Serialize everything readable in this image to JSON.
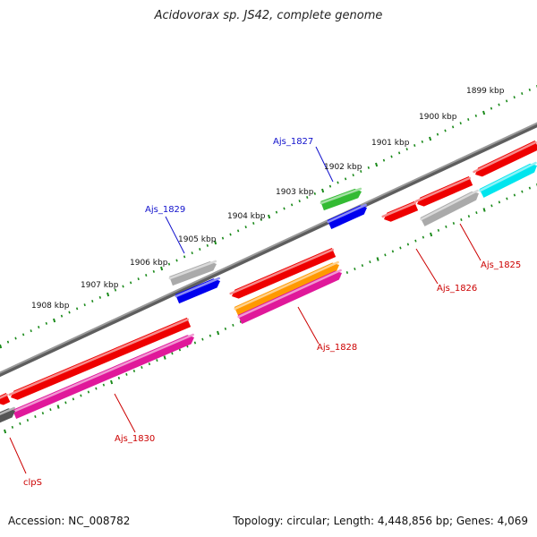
{
  "title": "Acidovorax sp. JS42, complete genome",
  "footer": {
    "accession_label": "Accession: NC_008782",
    "summary": "Topology: circular; Length: 4,448,856 bp; Genes: 4,069"
  },
  "scale_labels": [
    "1899 kbp",
    "1900 kbp",
    "1901 kbp",
    "1902 kbp",
    "1903 kbp",
    "1904 kbp",
    "1905 kbp",
    "1906 kbp",
    "1907 kbp",
    "1908 kbp"
  ],
  "gene_labels": [
    {
      "text": "Ajs_1827",
      "strand": "forward"
    },
    {
      "text": "Ajs_1829",
      "strand": "forward"
    },
    {
      "text": "Ajs_1825",
      "strand": "reverse"
    },
    {
      "text": "Ajs_1826",
      "strand": "reverse"
    },
    {
      "text": "Ajs_1828",
      "strand": "reverse"
    },
    {
      "text": "Ajs_1830",
      "strand": "reverse"
    },
    {
      "text": "clpS",
      "strand": "reverse"
    }
  ],
  "colors": {
    "forward_label": "#1111cc",
    "reverse_label": "#cc0000",
    "backbone": "#808080",
    "scale": "#1a8a1a",
    "red": "#ee0000",
    "magenta": "#e0189a",
    "blue": "#0000ee",
    "green": "#33bb33",
    "gray": "#aaaaaa",
    "cyan": "#00e5ee",
    "orange": "#ff9900"
  }
}
